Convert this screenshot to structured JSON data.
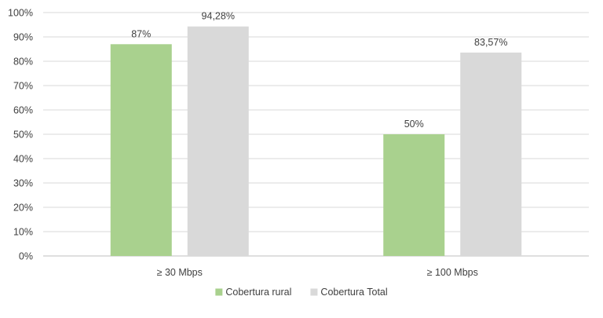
{
  "chart_data": {
    "type": "bar",
    "categories": [
      "≥ 30 Mbps",
      "≥ 100 Mbps"
    ],
    "series": [
      {
        "name": "Cobertura rural",
        "values": [
          87,
          50
        ],
        "data_labels": [
          "87%",
          "50%"
        ],
        "color": "#a9d18e"
      },
      {
        "name": "Cobertura Total",
        "values": [
          94.28,
          83.57
        ],
        "data_labels": [
          "94,28%",
          "83,57%"
        ],
        "color": "#d9d9d9"
      }
    ],
    "ylim": [
      0,
      100
    ],
    "yticks": [
      0,
      10,
      20,
      30,
      40,
      50,
      60,
      70,
      80,
      90,
      100
    ],
    "ytick_labels": [
      "0%",
      "10%",
      "20%",
      "30%",
      "40%",
      "50%",
      "60%",
      "70%",
      "80%",
      "90%",
      "100%"
    ],
    "grid": true,
    "grid_color": "#d9d9d9",
    "legend_position": "bottom-center",
    "title": "",
    "xlabel": "",
    "ylabel": ""
  }
}
